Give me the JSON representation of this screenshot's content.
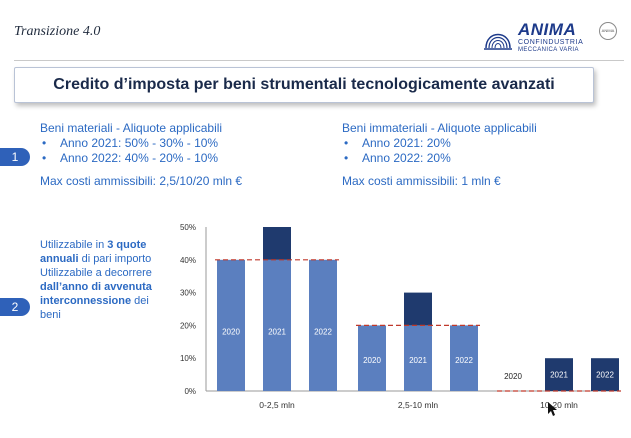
{
  "header": {
    "title": "Transizione 4.0",
    "logo": {
      "word": "ANIMA",
      "line1": "CONFINDUSTRIA",
      "line2": "MECCANICA VARIA",
      "badge": "ANIMA"
    }
  },
  "slide_title": "Credito d’imposta per beni strumentali tecnologicamente avanzati",
  "markers": [
    "1",
    "2"
  ],
  "left_column": {
    "heading": "Beni materiali - Aliquote applicabili",
    "items": [
      "Anno 2021: 50% - 30% - 10%",
      "Anno 2022: 40% - 20% - 10%"
    ],
    "max": "Max costi ammissibili: 2,5/10/20 mln €"
  },
  "right_column": {
    "heading": "Beni immateriali - Aliquote applicabili",
    "items": [
      "Anno 2021: 20%",
      "Anno 2022: 20%"
    ],
    "max": "Max costi ammissibili: 1 mln €"
  },
  "side_note": {
    "p1": "Utilizzabile in ",
    "b1": "3 quote annuali",
    "p2": " di pari importo",
    "p3": "Utilizzabile a decorrere ",
    "b2": "dall’anno di avvenuta interconnessione",
    "p4": " dei beni"
  },
  "colors": {
    "accent": "#2c6ac3",
    "bar_light": "#5b7fbf",
    "bar_dark": "#1f3a6e",
    "dashed": "#c0392b"
  },
  "chart_data": {
    "type": "bar",
    "categories": [
      "0-2,5 mln",
      "2,5-10 mln",
      "10-20 mln"
    ],
    "series_labels": [
      "2020",
      "2021",
      "2022"
    ],
    "values": [
      [
        40,
        50,
        40
      ],
      [
        20,
        30,
        20
      ],
      [
        0,
        10,
        10
      ]
    ],
    "baseline_2020": [
      40,
      20,
      0
    ],
    "ylim": [
      0,
      50
    ],
    "yticks": [
      "0%",
      "10%",
      "20%",
      "30%",
      "40%",
      "50%"
    ],
    "grid": false
  }
}
